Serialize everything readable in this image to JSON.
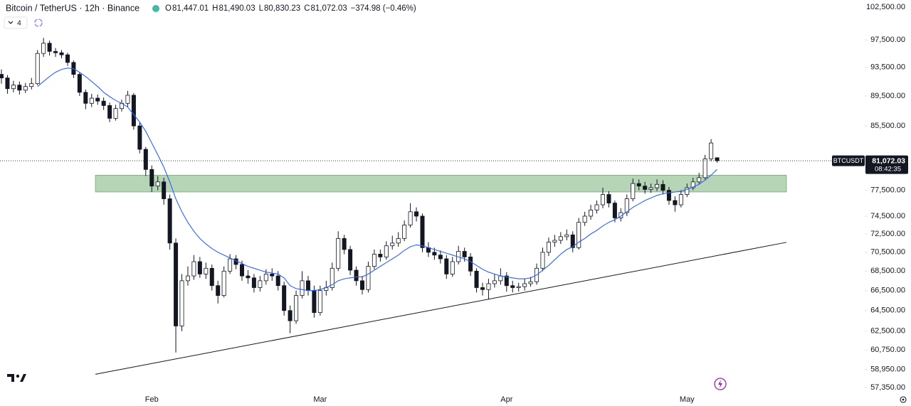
{
  "chart_data": {
    "type": "candlestick",
    "title": "Bitcoin / TetherUS · 12h · Binance",
    "ohlc": [
      {
        "label": "O",
        "value": "81,447.01"
      },
      {
        "label": "H",
        "value": "81,490.03"
      },
      {
        "label": "L",
        "value": "80,830.23"
      },
      {
        "label": "C",
        "value": "81,072.03"
      }
    ],
    "change": "−374.98 (−0.46%)",
    "indicator_count": "4",
    "symbol_tag": "BTCUSDT",
    "last_price_label": "81,072.03",
    "countdown": "08:42:35",
    "log_scale": true,
    "grid": false,
    "up_color": "#ffffff",
    "down_color": "#131722",
    "ylim": [
      57040,
      103620
    ],
    "yticks": [
      {
        "value": 102500,
        "label": "102,500.00"
      },
      {
        "value": 97500,
        "label": "97,500.00"
      },
      {
        "value": 93500,
        "label": "93,500.00"
      },
      {
        "value": 89500,
        "label": "89,500.00"
      },
      {
        "value": 85500,
        "label": "85,500.00"
      },
      {
        "value": 77500,
        "label": "77,500.00"
      },
      {
        "value": 74500,
        "label": "74,500.00"
      },
      {
        "value": 72500,
        "label": "72,500.00"
      },
      {
        "value": 70500,
        "label": "70,500.00"
      },
      {
        "value": 68500,
        "label": "68,500.00"
      },
      {
        "value": 66500,
        "label": "66,500.00"
      },
      {
        "value": 64500,
        "label": "64,500.00"
      },
      {
        "value": 62500,
        "label": "62,500.00"
      },
      {
        "value": 60750,
        "label": "60,750.00"
      },
      {
        "value": 58950,
        "label": "58,950.00"
      },
      {
        "value": 57350,
        "label": "57,350.00"
      }
    ],
    "categories": [
      null,
      null,
      null,
      null,
      null,
      null,
      null,
      null,
      null,
      null,
      null,
      null,
      null,
      null,
      null,
      null,
      null,
      null,
      null,
      null,
      null,
      null,
      null,
      null,
      null,
      "Feb",
      null,
      null,
      null,
      null,
      null,
      null,
      null,
      null,
      null,
      null,
      null,
      null,
      null,
      null,
      null,
      null,
      null,
      null,
      null,
      null,
      null,
      null,
      null,
      null,
      null,
      null,
      null,
      "Mar",
      null,
      null,
      null,
      null,
      null,
      null,
      null,
      null,
      null,
      null,
      null,
      null,
      null,
      null,
      null,
      null,
      null,
      null,
      null,
      null,
      null,
      null,
      null,
      null,
      null,
      null,
      null,
      null,
      null,
      null,
      "Apr",
      null,
      null,
      null,
      null,
      null,
      null,
      null,
      null,
      null,
      null,
      null,
      null,
      null,
      null,
      null,
      null,
      null,
      null,
      null,
      null,
      null,
      null,
      null,
      null,
      null,
      null,
      null,
      null,
      null,
      "May",
      null,
      null,
      null,
      null,
      null
    ],
    "candles": {
      "open": [
        92500,
        92000,
        90500,
        91000,
        90300,
        90800,
        91200,
        95500,
        97000,
        95800,
        95600,
        95300,
        94200,
        92500,
        90000,
        88500,
        89200,
        88800,
        88200,
        86500,
        87800,
        88500,
        89600,
        85500,
        82500,
        80000,
        78000,
        78500,
        76500,
        71500,
        63000,
        67500,
        68000,
        69500,
        68200,
        68800,
        67000,
        66000,
        68500,
        69800,
        69200,
        68000,
        67800,
        66800,
        67500,
        68200,
        68000,
        67000,
        64500,
        63500,
        66000,
        67500,
        66500,
        64300,
        66500,
        66800,
        68800,
        72000,
        70800,
        68600,
        67500,
        66600,
        69000,
        70300,
        70000,
        71200,
        71500,
        72000,
        73500,
        75000,
        74500,
        71000,
        70500,
        70200,
        69800,
        68200,
        69500,
        70600,
        70000,
        68500,
        66800,
        66600,
        67200,
        67500,
        68000,
        67000,
        66800,
        66900,
        67200,
        67400,
        68800,
        70500,
        71600,
        71800,
        72200,
        72400,
        71000,
        73800,
        74500,
        75200,
        75800,
        77000,
        76000,
        74300,
        74900,
        76500,
        78300,
        78000,
        77600,
        77800,
        78200,
        77500,
        76300,
        75800,
        77000,
        77800,
        78500,
        79000,
        81300,
        81447.01
      ],
      "high": [
        93200,
        92400,
        91600,
        91500,
        91300,
        92000,
        96000,
        97800,
        97400,
        96300,
        96000,
        95600,
        94500,
        92800,
        90400,
        89800,
        89700,
        89300,
        88600,
        88300,
        89000,
        90200,
        89900,
        86000,
        82800,
        80500,
        79200,
        79000,
        77000,
        72000,
        68200,
        69000,
        70200,
        70000,
        69400,
        69200,
        67500,
        69000,
        70300,
        70200,
        69600,
        68600,
        68200,
        68000,
        68700,
        68800,
        68500,
        67400,
        65000,
        66500,
        68500,
        68000,
        67000,
        67000,
        67500,
        69400,
        72800,
        72400,
        71200,
        69000,
        68000,
        69500,
        70800,
        70800,
        71700,
        72300,
        72700,
        74000,
        76000,
        75500,
        74800,
        71600,
        71000,
        70700,
        70200,
        70000,
        71200,
        71000,
        70400,
        68800,
        67300,
        67700,
        68200,
        68800,
        68400,
        67500,
        67300,
        67700,
        67900,
        69300,
        71000,
        72100,
        72400,
        72700,
        73000,
        72800,
        74300,
        75000,
        75800,
        76300,
        77800,
        77400,
        76300,
        75400,
        77000,
        78900,
        78800,
        78500,
        78300,
        78800,
        78700,
        77900,
        76800,
        77500,
        78300,
        79000,
        79600,
        81800,
        83800,
        81490.03
      ],
      "low": [
        91200,
        89800,
        90000,
        89700,
        89900,
        90400,
        91000,
        95000,
        95200,
        95000,
        94800,
        93700,
        92000,
        89500,
        87700,
        88000,
        88300,
        87600,
        86000,
        86200,
        87400,
        88000,
        85000,
        82000,
        79200,
        77300,
        77500,
        75800,
        70800,
        60500,
        62500,
        67000,
        67600,
        67800,
        67700,
        66500,
        65200,
        65800,
        68200,
        68700,
        67500,
        67200,
        66300,
        66400,
        67100,
        67500,
        66500,
        64000,
        62300,
        63200,
        65700,
        66000,
        63800,
        64000,
        66000,
        66500,
        68500,
        70300,
        68100,
        67000,
        66100,
        66300,
        68700,
        69500,
        69700,
        70800,
        71100,
        71700,
        73200,
        73900,
        70500,
        70000,
        69700,
        69300,
        67700,
        67900,
        69200,
        69500,
        68000,
        66300,
        66000,
        65600,
        66800,
        67100,
        66400,
        66300,
        66400,
        66500,
        66900,
        67100,
        68500,
        70100,
        71100,
        71400,
        71800,
        70500,
        70800,
        73400,
        74100,
        74800,
        75400,
        75500,
        73800,
        73900,
        74500,
        76200,
        77500,
        77100,
        77200,
        77400,
        77000,
        75800,
        75000,
        75500,
        76700,
        77500,
        78200,
        78800,
        81000,
        80830.23
      ],
      "close": [
        92000,
        90500,
        91000,
        90300,
        90800,
        91200,
        95500,
        97000,
        95800,
        95600,
        95300,
        94200,
        92500,
        90000,
        88500,
        89200,
        88800,
        88200,
        86500,
        87800,
        88500,
        89600,
        85500,
        82500,
        80000,
        78000,
        78500,
        76500,
        71500,
        63000,
        67500,
        68000,
        69500,
        68200,
        68800,
        67000,
        66000,
        68500,
        69800,
        69200,
        68000,
        67800,
        66800,
        67500,
        68200,
        68000,
        67000,
        64500,
        63500,
        66000,
        67500,
        66500,
        64300,
        66500,
        66800,
        68800,
        72000,
        70800,
        68600,
        67500,
        66600,
        69000,
        70300,
        70000,
        71200,
        71500,
        72000,
        73500,
        75000,
        74500,
        71000,
        70500,
        70200,
        69800,
        68200,
        69500,
        70600,
        70000,
        68500,
        66800,
        66600,
        67200,
        67500,
        68000,
        67000,
        66800,
        66900,
        67200,
        67400,
        68800,
        70500,
        71600,
        71800,
        72200,
        72400,
        71000,
        73800,
        74500,
        75200,
        75800,
        77000,
        76000,
        74300,
        74900,
        76500,
        78300,
        78000,
        77600,
        77800,
        78200,
        77500,
        76300,
        75800,
        77000,
        77800,
        78500,
        79000,
        81300,
        83300,
        81072.03
      ]
    },
    "ma": {
      "color": "#2962ff",
      "values": [
        null,
        null,
        null,
        null,
        null,
        null,
        90800,
        91500,
        92200,
        92800,
        93200,
        93400,
        93300,
        92800,
        92200,
        91500,
        90800,
        90000,
        89400,
        88900,
        88500,
        88000,
        87000,
        86000,
        84800,
        83300,
        81800,
        80300,
        78500,
        76500,
        75000,
        73800,
        72800,
        72000,
        71400,
        70900,
        70500,
        70200,
        69900,
        69600,
        69300,
        69000,
        68800,
        68600,
        68400,
        68300,
        68200,
        67800,
        67000,
        66700,
        66600,
        66500,
        66500,
        66600,
        66800,
        67100,
        67500,
        67700,
        67800,
        67900,
        67900,
        68200,
        68600,
        69000,
        69400,
        69800,
        70200,
        70700,
        71100,
        71300,
        71200,
        71000,
        70800,
        70600,
        70400,
        70200,
        70000,
        69800,
        69500,
        69100,
        68700,
        68400,
        68200,
        68000,
        67900,
        67800,
        67700,
        67700,
        67800,
        68100,
        68600,
        69100,
        69700,
        70300,
        70800,
        71100,
        71600,
        72000,
        72500,
        72900,
        73400,
        73800,
        74100,
        74500,
        75000,
        75500,
        75900,
        76300,
        76600,
        76900,
        77100,
        77200,
        77300,
        77400,
        77600,
        77900,
        78200,
        78700,
        79300,
        80000
      ]
    },
    "zone": {
      "top": 79300,
      "bottom": 77300,
      "color": "#8fbf8f"
    },
    "trendline": {
      "start": 58520,
      "end": 71580,
      "color": "#131722"
    }
  }
}
